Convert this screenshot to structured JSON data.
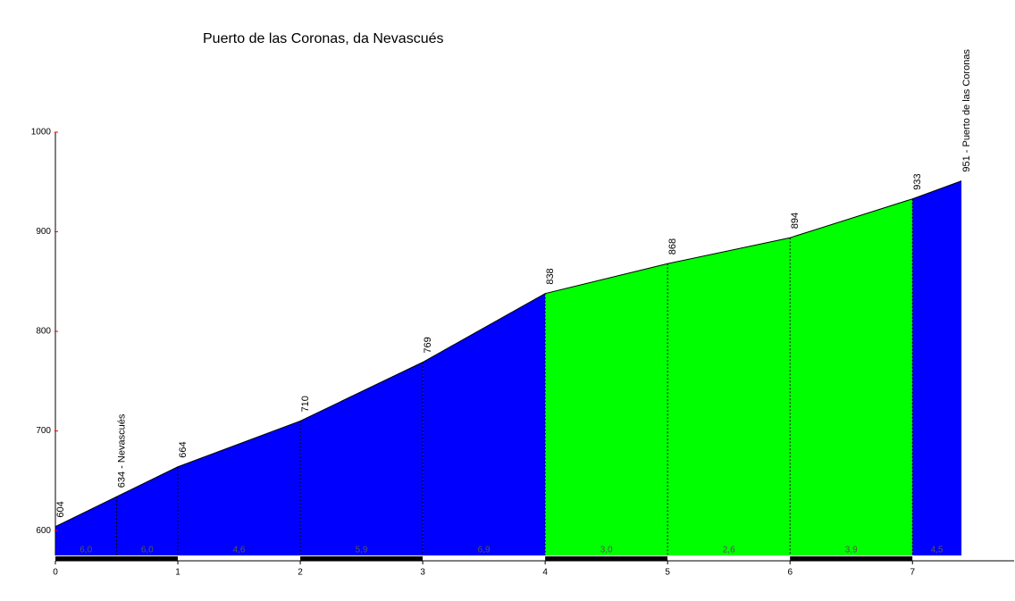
{
  "chart_data": {
    "type": "area",
    "title": "Puerto de las Coronas, da Nevascués",
    "x": [
      0,
      0.5,
      1,
      2,
      3,
      4,
      5,
      6,
      7,
      7.4
    ],
    "values": [
      604,
      634,
      664,
      710,
      769,
      838,
      868,
      894,
      933,
      951
    ],
    "value_labels": [
      "604",
      "634 - Nevascués",
      "664",
      "710",
      "769",
      "838",
      "868",
      "894",
      "933",
      "951 - Puerto de las Coronas"
    ],
    "segment_values": [
      6.0,
      6.0,
      4.6,
      5.9,
      6.9,
      3.0,
      2.6,
      3.9,
      4.5
    ],
    "segment_labels": [
      "6,0",
      "6,0",
      "4,6",
      "5,9",
      "6,9",
      "3,0",
      "2,6",
      "3,9",
      "4,5"
    ],
    "segment_colors": [
      "#0000ff",
      "#0000ff",
      "#0000ff",
      "#0000ff",
      "#0000ff",
      "#00ff00",
      "#00ff00",
      "#00ff00",
      "#0000ff"
    ],
    "xlim": [
      0,
      7.83
    ],
    "xticks": [
      0,
      1,
      2,
      3,
      4,
      5,
      6,
      7
    ],
    "ylim": [
      575,
      1000
    ],
    "yticks": [
      600,
      700,
      800,
      900,
      1000
    ]
  }
}
